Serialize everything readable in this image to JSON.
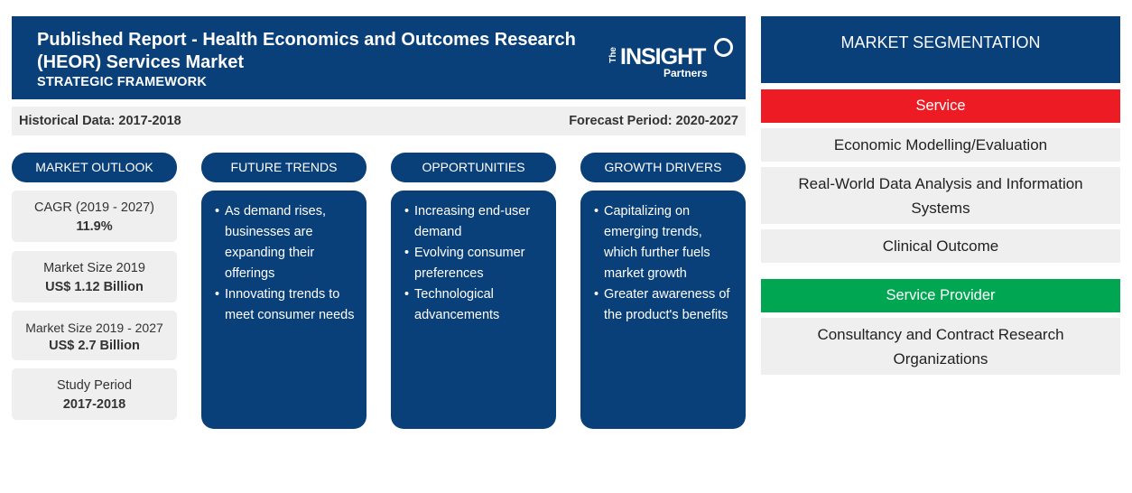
{
  "header": {
    "title": "Published Report - Health Economics and Outcomes Research (HEOR) Services Market",
    "subtitle": "STRATEGIC FRAMEWORK",
    "logo": {
      "the": "The",
      "insight": "INSIGHT",
      "partners": "Partners"
    }
  },
  "periods": {
    "historical": "Historical Data: 2017-2018",
    "forecast": "Forecast Period: 2020-2027"
  },
  "columns": {
    "market_outlook": "MARKET OUTLOOK",
    "future_trends": "FUTURE TRENDS",
    "opportunities": "OPPORTUNITIES",
    "growth_drivers": "GROWTH DRIVERS"
  },
  "outlook": [
    {
      "label": "CAGR (2019 - 2027)",
      "value": "11.9%"
    },
    {
      "label": "Market Size 2019",
      "value": "US$ 1.12 Billion"
    },
    {
      "label": "Market Size 2019 - 2027",
      "value": "US$ 2.7 Billion"
    },
    {
      "label": "Study Period",
      "value": "2017-2018"
    }
  ],
  "future_trends": [
    "As demand rises, businesses are expanding their offerings",
    "Innovating trends to meet consumer needs"
  ],
  "opportunities": [
    "Increasing end-user demand",
    "Evolving consumer preferences",
    "Technological advancements"
  ],
  "growth_drivers": [
    "Capitalizing on emerging trends, which further fuels market growth",
    "Greater awareness of the product's benefits"
  ],
  "segmentation": {
    "title": "MARKET SEGMENTATION",
    "categories": [
      {
        "name": "Service",
        "color": "#ed1c24",
        "items": [
          "Economic Modelling/Evaluation",
          "Real-World Data Analysis and Information Systems",
          "Clinical Outcome"
        ]
      },
      {
        "name": "Service Provider",
        "color": "#00a651",
        "items": [
          "Consultancy and Contract Research Organizations"
        ]
      }
    ]
  },
  "colors": {
    "primary": "#0a4079",
    "panel": "#efefef"
  }
}
